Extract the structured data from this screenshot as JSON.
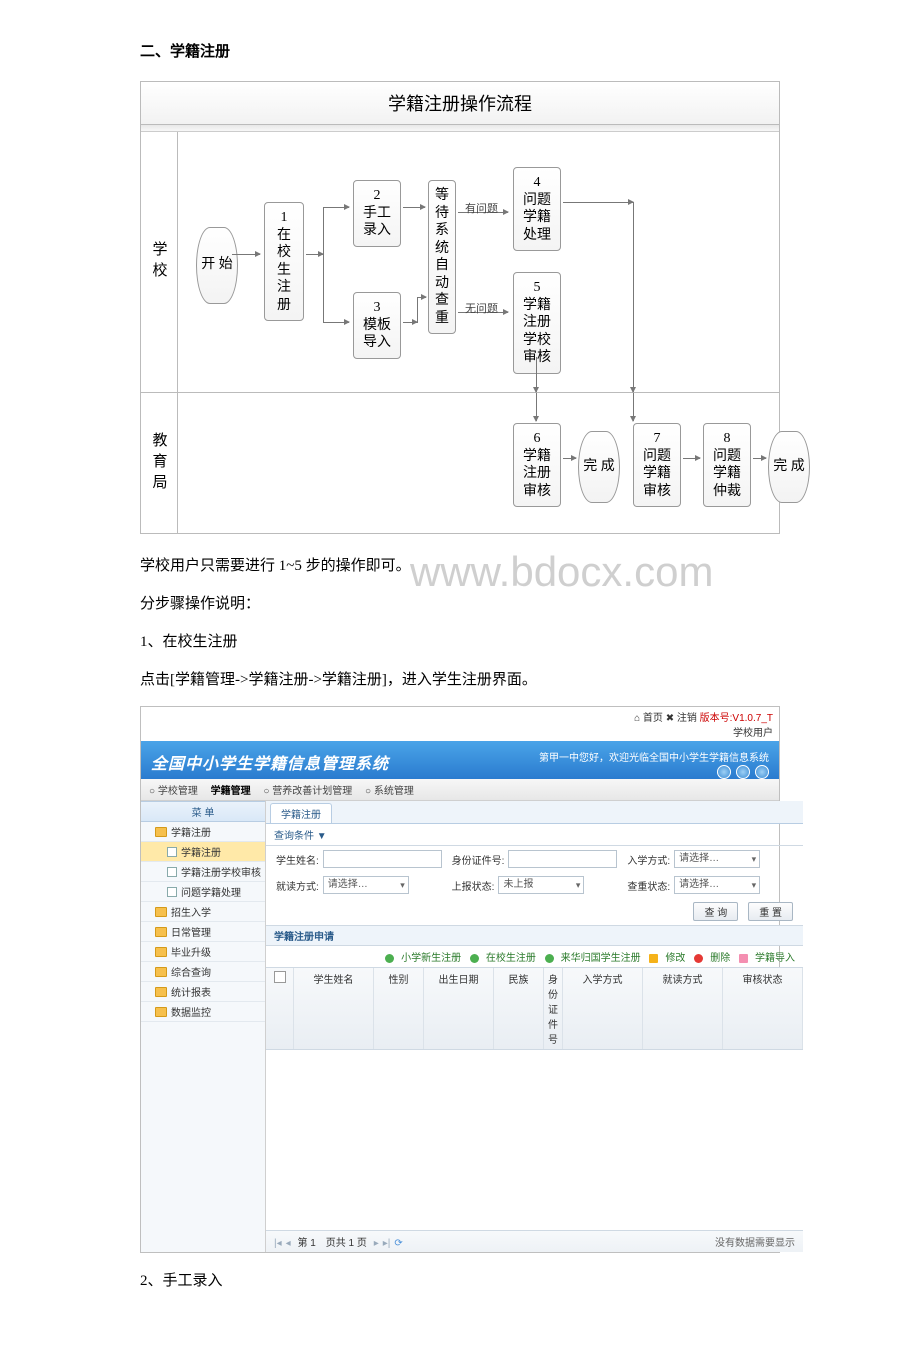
{
  "heading": "二、学籍注册",
  "flowchart": {
    "title": "学籍注册操作流程",
    "lanes": {
      "school": "学校",
      "bureau": "教育局"
    },
    "nodes": {
      "start": "开\n始",
      "n1_num": "1",
      "n1": "在\n校\n生\n注\n册",
      "n2_num": "2",
      "n2": "手工\n录入",
      "n3_num": "3",
      "n3": "模板\n导入",
      "wait": "等\n待\n系\n统\n自\n动\n查\n重",
      "n4_num": "4",
      "n4": "问题\n学籍\n处理",
      "n5_num": "5",
      "n5": "学籍\n注册\n学校\n审核",
      "n6_num": "6",
      "n6": "学籍\n注册\n审核",
      "done1": "完\n成",
      "n7_num": "7",
      "n7": "问题\n学籍\n审核",
      "n8_num": "8",
      "n8": "问题\n学籍\n仲裁",
      "done2": "完\n成"
    },
    "edge_labels": {
      "has_issue": "有问题",
      "no_issue": "无问题"
    }
  },
  "para1": "学校用户只需要进行 1~5 步的操作即可。",
  "watermark": "www.bdocx.com",
  "para2": "分步骤操作说明：",
  "step1_title": "1、在校生注册",
  "step1_text": "点击[学籍管理->学籍注册->学籍注册]，进入学生注册界面。",
  "shot": {
    "top_links": "⌂ 首页 ✖ 注销",
    "version_label": "版本号:V1.0.7_T",
    "user_role": "学校用户",
    "banner_title": "全国中小学生学籍信息管理系统",
    "welcome": "第甲一中您好，欢迎光临全国中小学生学籍信息系统",
    "menus": [
      "○ 学校管理",
      "学籍管理",
      "○ 营养改善计划管理",
      "○ 系统管理"
    ],
    "side_header": "菜 单",
    "side": [
      {
        "t": "folder",
        "label": "学籍注册"
      },
      {
        "t": "leaf",
        "label": "学籍注册",
        "sel": true
      },
      {
        "t": "leaf",
        "label": "学籍注册学校审核"
      },
      {
        "t": "leaf",
        "label": "问题学籍处理"
      },
      {
        "t": "folder",
        "label": "招生入学"
      },
      {
        "t": "folder",
        "label": "日常管理"
      },
      {
        "t": "folder",
        "label": "毕业升级"
      },
      {
        "t": "folder",
        "label": "综合查询"
      },
      {
        "t": "folder",
        "label": "统计报表"
      },
      {
        "t": "folder",
        "label": "数据监控"
      }
    ],
    "tab": "学籍注册",
    "filter_toggle": "查询条件 ▼",
    "labels": {
      "name": "学生姓名:",
      "id": "身份证件号:",
      "entry": "入学方式:",
      "study": "就读方式:",
      "report": "上报状态:",
      "dup": "查重状态:"
    },
    "placeholders": {
      "select": "请选择…",
      "notreported": "未上报"
    },
    "buttons": {
      "search": "查 询",
      "reset": "重 置"
    },
    "apply_title": "学籍注册申请",
    "actions": [
      "小学新生注册",
      "在校生注册",
      "来华归国学生注册",
      "修改",
      "删除",
      "学籍导入"
    ],
    "cols": [
      "",
      "学生姓名",
      "性别",
      "出生日期",
      "民族",
      "身份证件号",
      "入学方式",
      "就读方式",
      "审核状态"
    ],
    "pager_text": "第 1　页共 1 页",
    "pager_empty": "没有数据需要显示"
  },
  "step2_title": "2、手工录入"
}
